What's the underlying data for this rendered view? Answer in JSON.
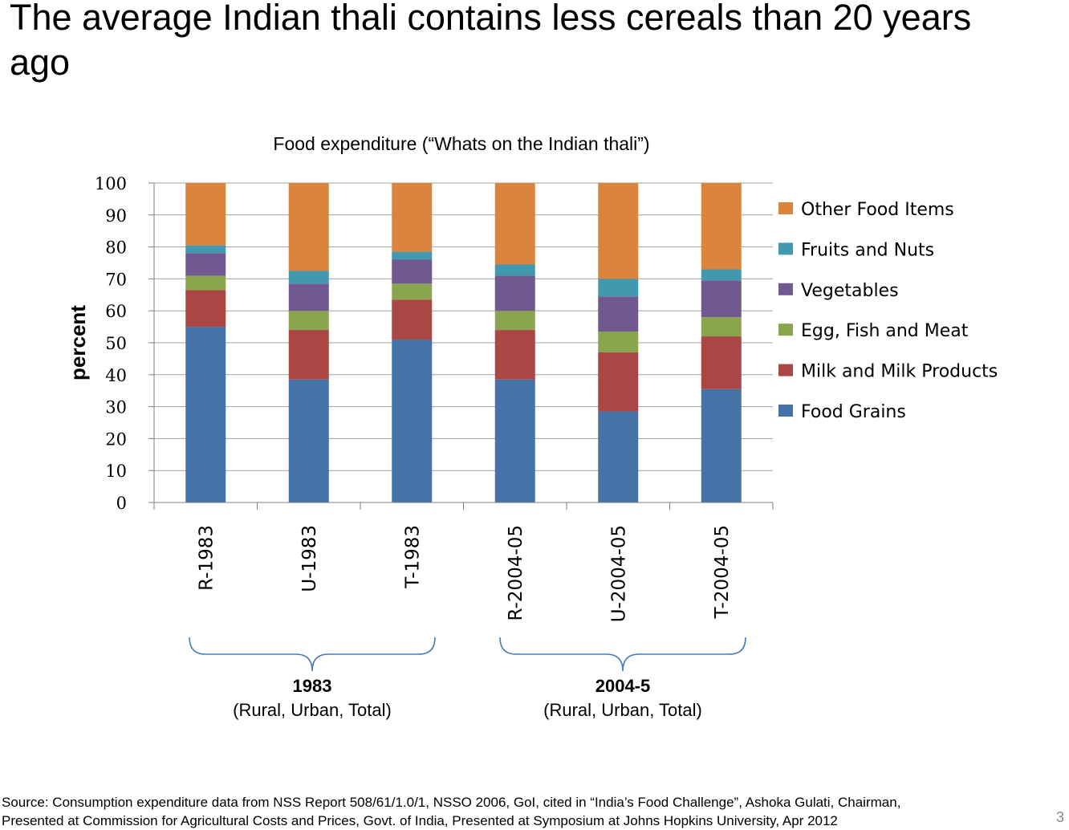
{
  "slide": {
    "title": "The average Indian thali contains less cereals than 20 years ago",
    "page_number": "3",
    "source_line1": "Source: Consumption expenditure data from NSS Report 508/61/1.0/1, NSSO 2006, GoI, cited in “India’s Food Challenge”, Ashoka Gulati, Chairman,",
    "source_line2": "Presented at Commission for Agricultural Costs and Prices, Govt. of India, Presented at Symposium at Johns Hopkins University, Apr 2012"
  },
  "groups": [
    {
      "label": "1983",
      "sublabel": "(Rural, Urban, Total)"
    },
    {
      "label": "2004-5",
      "sublabel": "(Rural, Urban, Total)"
    }
  ],
  "chart_data": {
    "type": "bar",
    "stacked": true,
    "title": "Food expenditure (“Whats on the Indian thali”)",
    "xlabel": "",
    "ylabel": "percent",
    "ylim": [
      0,
      100
    ],
    "yticks": [
      0,
      10,
      20,
      30,
      40,
      50,
      60,
      70,
      80,
      90,
      100
    ],
    "grid": true,
    "legend_position": "right",
    "categories": [
      "R-1983",
      "U-1983",
      "T-1983",
      "R-2004-05",
      "U-2004-05",
      "T-2004-05"
    ],
    "series": [
      {
        "name": "Food Grains",
        "color": "#4572A7",
        "values": [
          55,
          38.5,
          51,
          38.5,
          28.5,
          35.5
        ]
      },
      {
        "name": "Milk and Milk Products",
        "color": "#AA4643",
        "values": [
          11.5,
          15.5,
          12.5,
          15.5,
          18.5,
          16.5
        ]
      },
      {
        "name": "Egg, Fish and Meat",
        "color": "#89A54E",
        "values": [
          4.5,
          6,
          5,
          6,
          6.5,
          6
        ]
      },
      {
        "name": "Vegetables",
        "color": "#71588F",
        "values": [
          7,
          8.5,
          7.5,
          11,
          11,
          11.5
        ]
      },
      {
        "name": "Fruits and Nuts",
        "color": "#4198AF",
        "values": [
          2.5,
          4,
          2.5,
          3.5,
          5.5,
          3.5
        ]
      },
      {
        "name": "Other Food Items",
        "color": "#DB843D",
        "values": [
          19.5,
          27.5,
          21.5,
          25.5,
          30,
          27
        ]
      }
    ]
  }
}
